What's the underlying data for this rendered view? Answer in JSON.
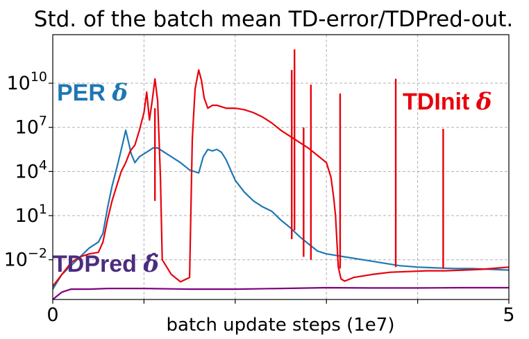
{
  "chart_data": {
    "type": "line",
    "title": "Std. of the batch mean TD-error/TDPred-out.",
    "xlabel": "batch update steps (1e7)",
    "ylabel": "",
    "xlim": [
      0,
      5
    ],
    "ylim_log10": [
      -4.7,
      13.3
    ],
    "yscale": "log",
    "grid": true,
    "x_ticks": [
      {
        "value": 0,
        "label": "0"
      },
      {
        "value": 1,
        "label": ""
      },
      {
        "value": 2,
        "label": ""
      },
      {
        "value": 3,
        "label": ""
      },
      {
        "value": 4,
        "label": ""
      },
      {
        "value": 5,
        "label": "5"
      }
    ],
    "y_ticks": [
      {
        "exp": -2,
        "base": "10",
        "sup": "−2"
      },
      {
        "exp": 1,
        "base": "10",
        "sup": "1"
      },
      {
        "exp": 4,
        "base": "10",
        "sup": "4"
      },
      {
        "exp": 7,
        "base": "10",
        "sup": "7"
      },
      {
        "exp": 10,
        "base": "10",
        "sup": "10"
      }
    ],
    "annotations": [
      {
        "text": "PER",
        "symbol": "δ",
        "color": "#1f77b4"
      },
      {
        "text": "TDInit",
        "symbol": "δ",
        "color": "#e8000b"
      },
      {
        "text": "TDPred",
        "symbol": "δ̂",
        "color": "#4b2d7f"
      }
    ],
    "series": [
      {
        "color": "#1f77b4",
        "x_log10y": [
          [
            0,
            -4.0
          ],
          [
            0.1,
            -3.0
          ],
          [
            0.2,
            -2.4
          ],
          [
            0.3,
            -1.8
          ],
          [
            0.4,
            -1.2
          ],
          [
            0.5,
            -0.8
          ],
          [
            0.55,
            -0.2
          ],
          [
            0.6,
            1.5
          ],
          [
            0.65,
            3.0
          ],
          [
            0.7,
            4.2
          ],
          [
            0.74,
            5.2
          ],
          [
            0.77,
            6.0
          ],
          [
            0.8,
            6.8
          ],
          [
            0.83,
            6.0
          ],
          [
            0.86,
            5.2
          ],
          [
            0.9,
            4.6
          ],
          [
            0.95,
            5.0
          ],
          [
            1.0,
            5.2
          ],
          [
            1.05,
            5.4
          ],
          [
            1.1,
            5.6
          ],
          [
            1.15,
            5.6
          ],
          [
            1.2,
            5.4
          ],
          [
            1.3,
            5.0
          ],
          [
            1.4,
            4.6
          ],
          [
            1.5,
            4.1
          ],
          [
            1.6,
            3.9
          ],
          [
            1.65,
            5.0
          ],
          [
            1.7,
            5.5
          ],
          [
            1.75,
            5.4
          ],
          [
            1.8,
            5.5
          ],
          [
            1.85,
            5.3
          ],
          [
            1.9,
            4.8
          ],
          [
            2.0,
            3.4
          ],
          [
            2.1,
            2.6
          ],
          [
            2.2,
            2.0
          ],
          [
            2.3,
            1.6
          ],
          [
            2.4,
            1.3
          ],
          [
            2.5,
            0.7
          ],
          [
            2.6,
            0.2
          ],
          [
            2.7,
            -0.4
          ],
          [
            2.8,
            -0.9
          ],
          [
            2.9,
            -1.4
          ],
          [
            3.0,
            -1.6
          ],
          [
            3.1,
            -1.7
          ],
          [
            3.2,
            -1.8
          ],
          [
            3.4,
            -2.0
          ],
          [
            3.6,
            -2.2
          ],
          [
            3.8,
            -2.4
          ],
          [
            4.0,
            -2.5
          ],
          [
            4.2,
            -2.55
          ],
          [
            4.4,
            -2.6
          ],
          [
            4.6,
            -2.6
          ],
          [
            4.8,
            -2.65
          ],
          [
            5.0,
            -2.7
          ]
        ]
      },
      {
        "color": "#e8000b",
        "x_log10y": [
          [
            0,
            -3.8
          ],
          [
            0.1,
            -3.0
          ],
          [
            0.2,
            -2.2
          ],
          [
            0.3,
            -1.8
          ],
          [
            0.4,
            -1.6
          ],
          [
            0.5,
            -1.5
          ],
          [
            0.55,
            -0.8
          ],
          [
            0.6,
            0.7
          ],
          [
            0.65,
            2.0
          ],
          [
            0.7,
            3.0
          ],
          [
            0.75,
            4.0
          ],
          [
            0.8,
            4.6
          ],
          [
            0.85,
            5.4
          ],
          [
            0.9,
            5.8
          ],
          [
            0.95,
            6.8
          ],
          [
            1.0,
            8.0
          ],
          [
            1.03,
            9.4
          ],
          [
            1.06,
            7.5
          ],
          [
            1.09,
            8.8
          ],
          [
            1.12,
            10.3
          ],
          [
            1.15,
            8.8
          ],
          [
            1.18,
            3.6
          ],
          [
            1.2,
            -2.0
          ],
          [
            1.3,
            -3.0
          ],
          [
            1.4,
            -3.5
          ],
          [
            1.5,
            -3.2
          ],
          [
            1.53,
            6.2
          ],
          [
            1.56,
            9.6
          ],
          [
            1.6,
            10.9
          ],
          [
            1.63,
            10.2
          ],
          [
            1.66,
            9.0
          ],
          [
            1.7,
            8.3
          ],
          [
            1.75,
            8.5
          ],
          [
            1.8,
            8.5
          ],
          [
            1.9,
            8.3
          ],
          [
            2.0,
            8.3
          ],
          [
            2.1,
            8.2
          ],
          [
            2.2,
            8.0
          ],
          [
            2.3,
            7.7
          ],
          [
            2.4,
            7.3
          ],
          [
            2.5,
            6.8
          ],
          [
            2.6,
            6.4
          ],
          [
            2.7,
            6.0
          ],
          [
            2.8,
            5.6
          ],
          [
            2.9,
            5.1
          ],
          [
            3.0,
            4.6
          ],
          [
            3.05,
            3.6
          ],
          [
            3.08,
            2.2
          ],
          [
            3.1,
            1.0
          ],
          [
            3.13,
            -2.5
          ],
          [
            3.16,
            -3.3
          ],
          [
            3.2,
            -3.45
          ],
          [
            3.3,
            -3.2
          ],
          [
            3.5,
            -3.0
          ],
          [
            3.7,
            -2.85
          ],
          [
            3.9,
            -2.8
          ],
          [
            4.1,
            -2.75
          ],
          [
            4.3,
            -2.75
          ],
          [
            4.5,
            -2.7
          ],
          [
            4.7,
            -2.65
          ],
          [
            4.9,
            -2.55
          ],
          [
            5.0,
            -2.5
          ]
        ]
      },
      {
        "color": "#800080",
        "x_log10y": [
          [
            0,
            -4.7
          ],
          [
            0.1,
            -4.2
          ],
          [
            0.2,
            -4.0
          ],
          [
            0.4,
            -4.0
          ],
          [
            0.6,
            -3.95
          ],
          [
            1.0,
            -3.95
          ],
          [
            1.5,
            -4.0
          ],
          [
            2.0,
            -4.0
          ],
          [
            2.5,
            -3.95
          ],
          [
            3.0,
            -3.9
          ],
          [
            3.5,
            -3.92
          ],
          [
            4.0,
            -3.92
          ],
          [
            4.5,
            -3.9
          ],
          [
            5.0,
            -3.9
          ]
        ]
      }
    ],
    "spikes": [
      {
        "series": 1,
        "x": 1.12,
        "low_log10": 2.0,
        "high_log10": 8.3
      },
      {
        "series": 1,
        "x": 2.62,
        "low_log10": -0.6,
        "high_log10": 10.9
      },
      {
        "series": 1,
        "x": 2.65,
        "low_log10": 0.0,
        "high_log10": 12.3
      },
      {
        "series": 1,
        "x": 2.75,
        "low_log10": -1.8,
        "high_log10": 7.0
      },
      {
        "series": 1,
        "x": 2.83,
        "low_log10": -2.0,
        "high_log10": 9.9
      },
      {
        "series": 1,
        "x": 3.15,
        "low_log10": -2.6,
        "high_log10": 9.3
      },
      {
        "series": 1,
        "x": 3.76,
        "low_log10": -2.5,
        "high_log10": 10.3
      },
      {
        "series": 1,
        "x": 4.28,
        "low_log10": -2.6,
        "high_log10": 6.9
      }
    ]
  }
}
